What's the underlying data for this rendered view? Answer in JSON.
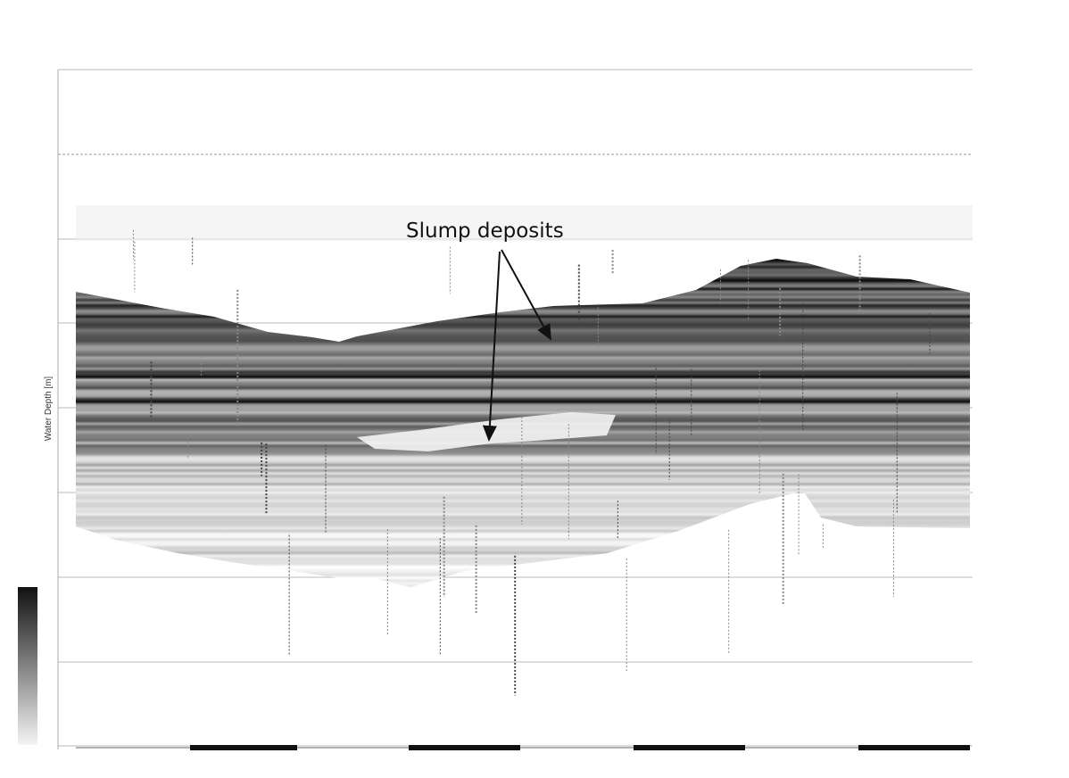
{
  "annotation": "Slump deposits",
  "y_axis_label": "Water Depth [m]"
}
